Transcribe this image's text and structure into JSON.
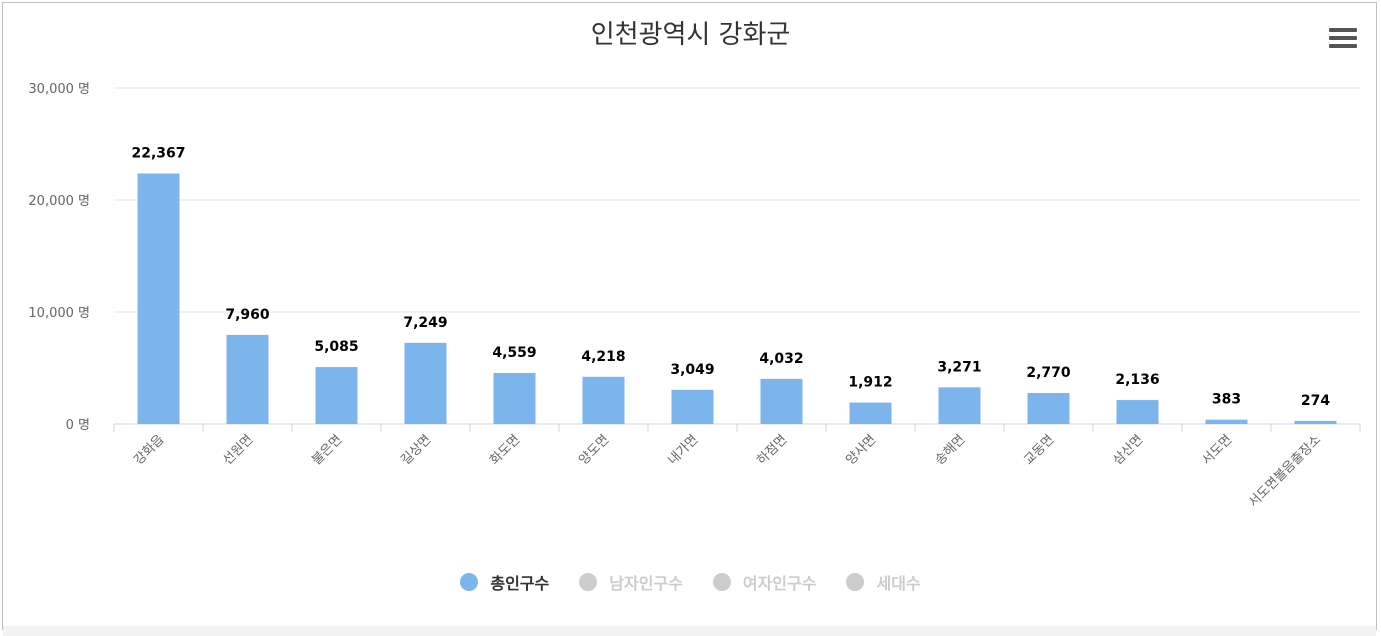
{
  "chart_data": {
    "type": "bar",
    "title": "인천광역시 강화군",
    "categories": [
      "강화읍",
      "선원면",
      "불은면",
      "길상면",
      "화도면",
      "양도면",
      "내가면",
      "하점면",
      "양사면",
      "송해면",
      "교동면",
      "삼산면",
      "서도면",
      "서도면볼음출장소"
    ],
    "series": [
      {
        "name": "총인구수",
        "values": [
          22367,
          7960,
          5085,
          7249,
          4559,
          4218,
          3049,
          4032,
          1912,
          3271,
          2770,
          2136,
          383,
          274
        ],
        "visible": true,
        "color": "#7cb5ec"
      }
    ],
    "data_labels": [
      "22,367",
      "7,960",
      "5,085",
      "7,249",
      "4,559",
      "4,218",
      "3,049",
      "4,032",
      "1,912",
      "3,271",
      "2,770",
      "2,136",
      "383",
      "274"
    ],
    "yticks": [
      {
        "value": 0,
        "label": "0 명"
      },
      {
        "value": 10000,
        "label": "10,000 명"
      },
      {
        "value": 20000,
        "label": "20,000 명"
      },
      {
        "value": 30000,
        "label": "30,000 명"
      }
    ],
    "ylim": [
      0,
      30000
    ],
    "grid": true,
    "legend_position": "bottom-center"
  },
  "legend": [
    {
      "label": "총인구수",
      "active": true,
      "color": "#7cb5ec"
    },
    {
      "label": "남자인구수",
      "active": false,
      "color": "#cccccc"
    },
    {
      "label": "여자인구수",
      "active": false,
      "color": "#cccccc"
    },
    {
      "label": "세대수",
      "active": false,
      "color": "#cccccc"
    }
  ],
  "colors": {
    "bar": "#7cb5ec",
    "grid": "#e6e6e6",
    "axis": "#ccd6eb",
    "active_text": "#333333",
    "inactive_text": "#cccccc"
  },
  "icons": {
    "menu": "hamburger-menu-icon"
  }
}
